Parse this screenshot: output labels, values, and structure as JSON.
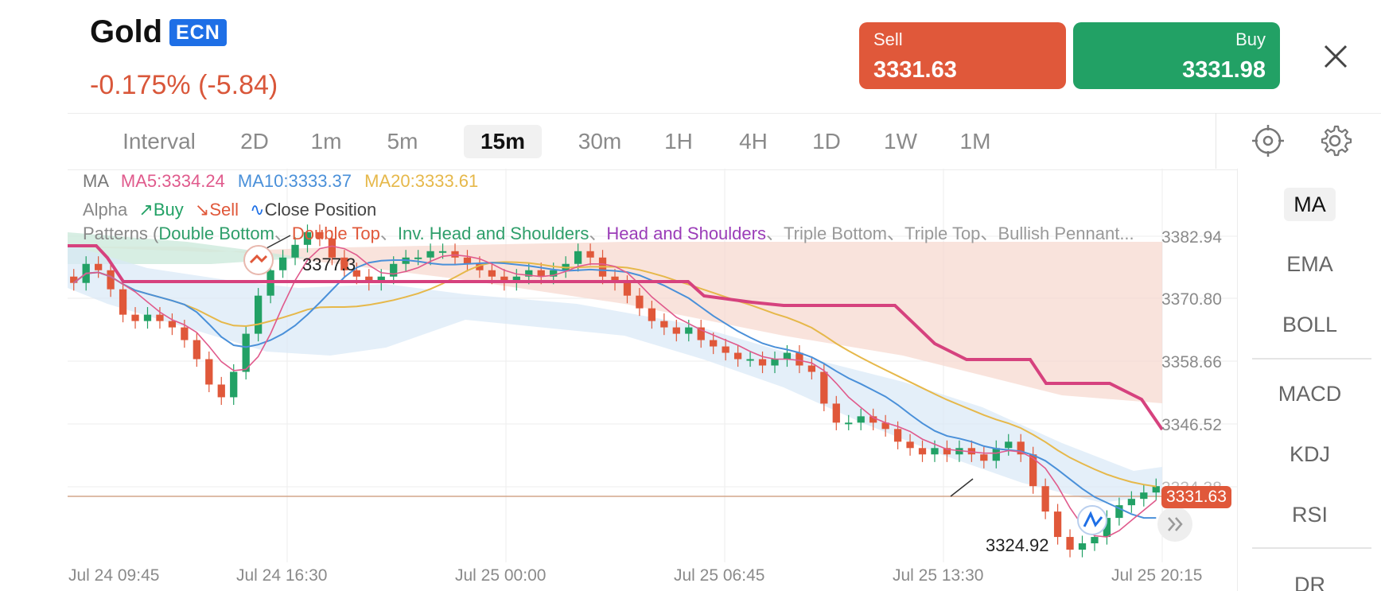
{
  "header": {
    "title": "Gold",
    "badge": "ECN",
    "change": "-0.175% (-5.84)",
    "sell_label": "Sell",
    "sell_price": "3331.63",
    "buy_label": "Buy",
    "buy_price": "3331.98"
  },
  "intervals": [
    "Interval",
    "2D",
    "1m",
    "5m",
    "15m",
    "30m",
    "1H",
    "4H",
    "1D",
    "1W",
    "1M"
  ],
  "active_interval": "15m",
  "indicators_panel": [
    "MA",
    "EMA",
    "BOLL",
    "MACD",
    "KDJ",
    "RSI",
    "DR"
  ],
  "active_indicator": "MA",
  "chart": {
    "ma_label": "MA",
    "ma5": "MA5:3334.24",
    "ma10": "MA10:3333.37",
    "ma20": "MA20:3333.61",
    "alpha_label": "Alpha",
    "alpha_buy": "Buy",
    "alpha_sell": "Sell",
    "alpha_close": "Close Position",
    "patterns_prefix": "Patterns (",
    "pattern_double_bottom": "Double Bottom",
    "pattern_double_top": "Double Top",
    "pattern_inv_hs": "Inv. Head and Shoulders",
    "pattern_hs": "Head and Shoulders",
    "pattern_triple_bottom": "Triple Bottom",
    "pattern_triple_top": "Triple Top",
    "pattern_bullish_pennant": "Bullish Pennant...",
    "sep": "、",
    "high_label": "3377.3",
    "low_label": "3324.92",
    "y_ticks": [
      "3382.94",
      "3370.80",
      "3358.66",
      "3346.52",
      "3334.38"
    ],
    "x_ticks": [
      "Jul 24 09:45",
      "Jul 24 16:30",
      "Jul 25 00:00",
      "Jul 25 06:45",
      "Jul 25 13:30",
      "Jul 25 20:15"
    ],
    "last_price": "3331.63"
  },
  "colors": {
    "sell": "#e0583a",
    "buy": "#22a165",
    "ecn": "#1e6fe6",
    "ma5": "#e05a8c",
    "ma10": "#4a90d9",
    "ma20": "#e6b84a",
    "pattern_green": "#2e9e6a",
    "pattern_red": "#e0583a",
    "pattern_purple": "#9b3db8"
  },
  "chart_data": {
    "type": "candlestick",
    "x_range": [
      "Jul 24 09:45",
      "Jul 25 20:15"
    ],
    "ylim": [
      3324,
      3386
    ],
    "close_series": [
      3368,
      3371,
      3370,
      3367,
      3363,
      3362,
      3363,
      3362,
      3361,
      3359,
      3356,
      3352,
      3350,
      3354,
      3360,
      3366,
      3370,
      3372,
      3374,
      3376,
      3375,
      3372,
      3370,
      3369,
      3368,
      3369,
      3371,
      3372,
      3372,
      3373,
      3373,
      3372,
      3371,
      3370,
      3369,
      3368,
      3369,
      3370,
      3369,
      3370,
      3371,
      3373,
      3372,
      3369,
      3368,
      3366,
      3364,
      3362,
      3361,
      3360,
      3361,
      3359,
      3358,
      3357,
      3356,
      3356,
      3355,
      3356,
      3357,
      3355,
      3354,
      3349,
      3346,
      3346,
      3347,
      3346,
      3345,
      3343,
      3342,
      3341,
      3342,
      3341,
      3342,
      3341,
      3340,
      3342,
      3343,
      3341,
      3336,
      3332,
      3328,
      3326,
      3327,
      3328,
      3331,
      3333,
      3334,
      3335,
      3336
    ]
  }
}
